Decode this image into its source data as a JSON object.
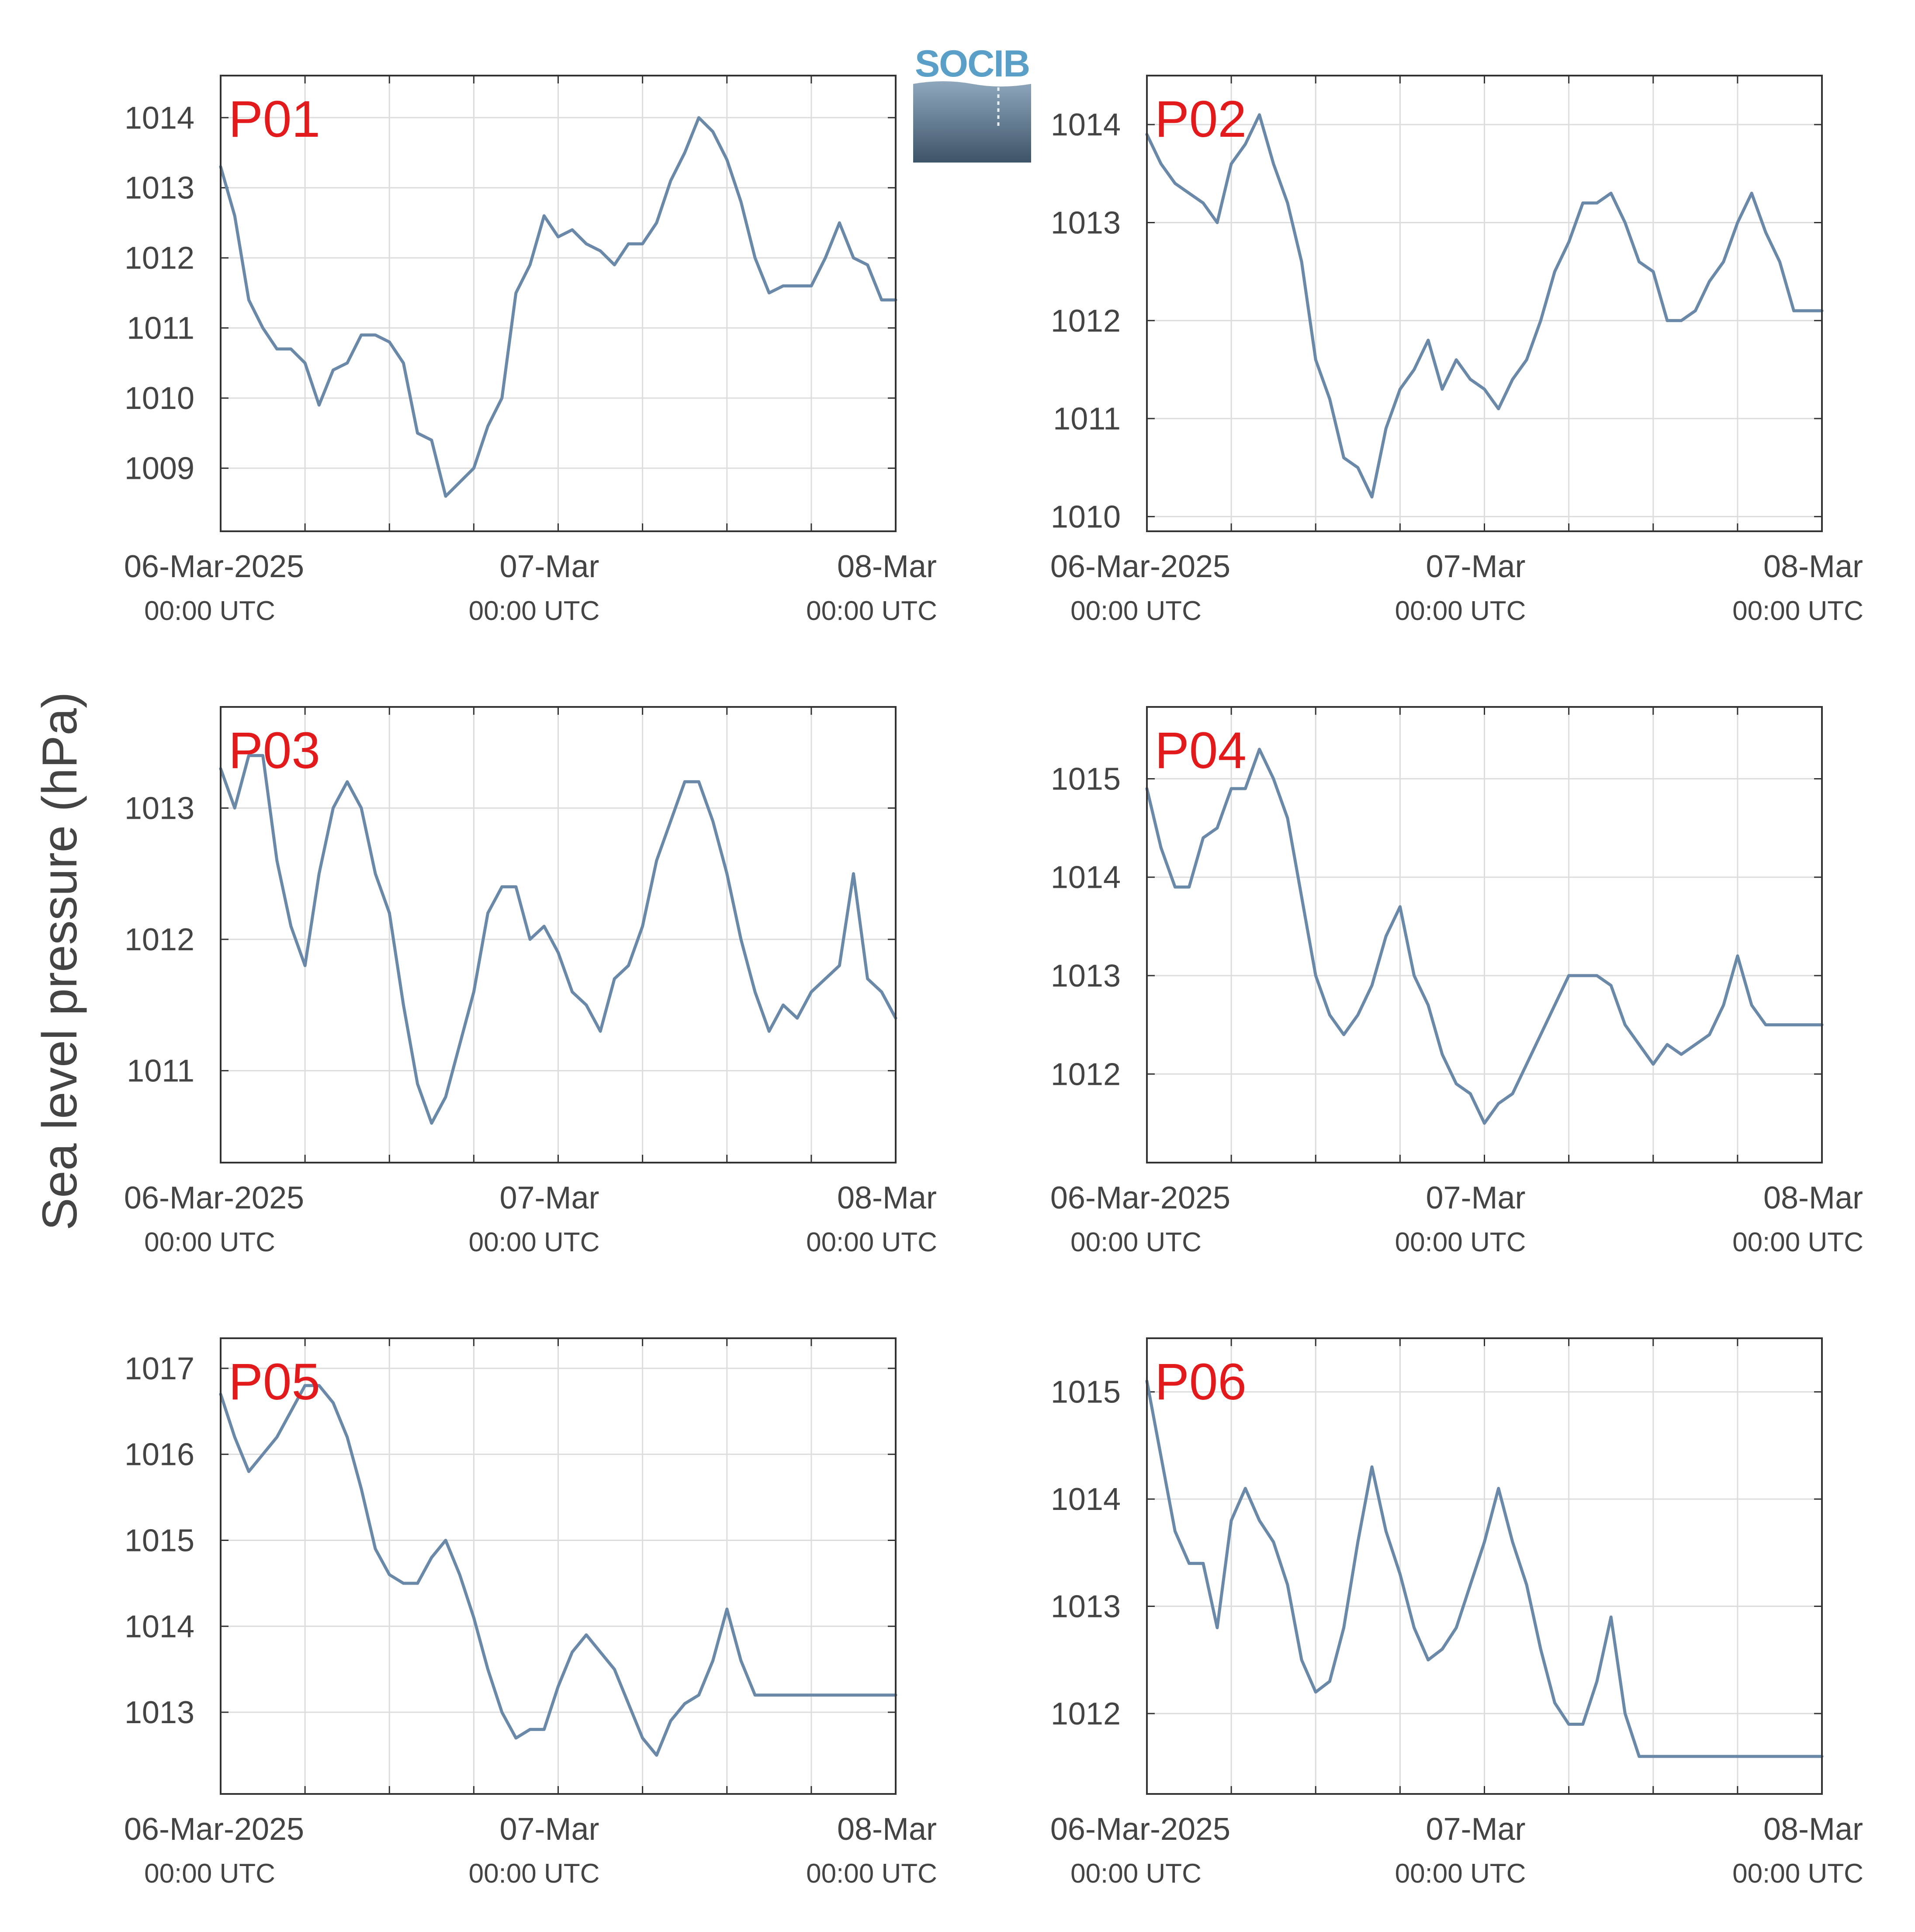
{
  "figure": {
    "ylabel": "Sea level pressure (hPa)",
    "logo_text": "SOCIB",
    "colors": {
      "line": "#6a89a9",
      "panel_label": "#e31a1c",
      "grid": "#dddddd",
      "axis": "#333333",
      "text": "#444444"
    }
  },
  "chart_data": [
    {
      "type": "line",
      "label": "P01",
      "xlim": [
        "2025-03-06 00:00",
        "2025-03-08 00:00"
      ],
      "ylim": [
        1008.1,
        1014.6
      ],
      "yticks": [
        1009,
        1010,
        1011,
        1012,
        1013,
        1014
      ],
      "xticklabels": [
        [
          "06-Mar-2025",
          "00:00 UTC"
        ],
        [
          "07-Mar",
          "00:00 UTC"
        ],
        [
          "08-Mar",
          "00:00 UTC"
        ]
      ],
      "series": [
        {
          "x_hours": [
            0,
            1,
            2,
            3,
            4,
            5,
            6,
            7,
            8,
            9,
            10,
            11,
            12,
            13,
            14,
            15,
            16,
            17,
            18,
            19,
            20,
            21,
            22,
            23,
            24,
            25,
            26,
            27,
            28,
            29,
            30,
            31,
            32,
            33,
            34,
            35,
            36,
            37,
            38,
            39,
            40,
            41,
            42,
            43,
            44,
            45,
            46,
            47,
            48
          ],
          "values": [
            1013.3,
            1012.6,
            1011.4,
            1011.0,
            1010.7,
            1010.7,
            1010.5,
            1009.9,
            1010.4,
            1010.5,
            1010.9,
            1010.9,
            1010.8,
            1010.5,
            1009.5,
            1009.4,
            1008.6,
            1008.8,
            1009.0,
            1009.6,
            1010.0,
            1011.5,
            1011.9,
            1012.6,
            1012.3,
            1012.4,
            1012.2,
            1012.1,
            1011.9,
            1012.2,
            1012.2,
            1012.5,
            1013.1,
            1013.5,
            1014.0,
            1013.8,
            1013.4,
            1012.8,
            1012.0,
            1011.5,
            1011.6,
            1011.6,
            1011.6,
            1012.0,
            1012.5,
            1012.0,
            1011.9,
            1011.4,
            1011.4
          ]
        }
      ]
    },
    {
      "type": "line",
      "label": "P02",
      "xlim": [
        "2025-03-06 00:00",
        "2025-03-08 00:00"
      ],
      "ylim": [
        983.0,
        1014.5
      ],
      "yticks": [
        1010,
        1011,
        1012,
        1013,
        1014
      ],
      "xticklabels": [
        [
          "06-Mar-2025",
          "00:00 UTC"
        ],
        [
          "07-Mar",
          "00:00 UTC"
        ],
        [
          "08-Mar",
          "00:00 UTC"
        ]
      ],
      "series": [
        {
          "x_hours": [
            0,
            1,
            2,
            3,
            4,
            5,
            6,
            7,
            8,
            9,
            10,
            11,
            12,
            13,
            14,
            15,
            16,
            17,
            18,
            19,
            20,
            21,
            22,
            23,
            24,
            25,
            26,
            27,
            28,
            29,
            30,
            31,
            32,
            33,
            34,
            35,
            36,
            37,
            38,
            39,
            40,
            41,
            42,
            43,
            44,
            45,
            46,
            47,
            48
          ],
          "values": [
            1013.9,
            1013.6,
            1013.4,
            1013.3,
            1013.2,
            1013.0,
            1013.6,
            1013.8,
            1014.1,
            1013.6,
            1013.2,
            1012.6,
            1011.6,
            1011.2,
            1010.6,
            1010.5,
            1010.2,
            1010.9,
            1011.3,
            1011.5,
            1011.8,
            1011.3,
            1011.6,
            1011.4,
            1011.3,
            1011.1,
            1011.4,
            1011.6,
            1012.0,
            1012.5,
            1012.8,
            1013.2,
            1013.2,
            1013.3,
            1013.0,
            1012.6,
            1012.5,
            1012.0,
            1012.0,
            1012.1,
            1012.4,
            1012.6,
            1013.0,
            1013.3,
            1012.9,
            1012.6,
            1012.1,
            1012.1,
            1012.1
          ]
        }
      ]
    },
    {
      "type": "line",
      "label": "P03",
      "xlim": [
        "2025-03-06 00:00",
        "2025-03-08 00:00"
      ],
      "ylim": [
        1010.3,
        1013.77
      ],
      "yticks": [
        1011,
        1012,
        1013
      ],
      "xticklabels": [
        [
          "06-Mar-2025",
          "00:00 UTC"
        ],
        [
          "07-Mar",
          "00:00 UTC"
        ],
        [
          "08-Mar",
          "00:00 UTC"
        ]
      ],
      "series": [
        {
          "x_hours": [
            0,
            1,
            2,
            3,
            4,
            5,
            6,
            7,
            8,
            9,
            10,
            11,
            12,
            13,
            14,
            15,
            16,
            17,
            18,
            19,
            20,
            21,
            22,
            23,
            24,
            25,
            26,
            27,
            28,
            29,
            30,
            31,
            32,
            33,
            34,
            35,
            36,
            37,
            38,
            39,
            40,
            41,
            42,
            43,
            44,
            45,
            46,
            47,
            48
          ],
          "values": [
            1013.3,
            1013.0,
            1013.4,
            1013.4,
            1012.6,
            1012.1,
            1011.8,
            1012.5,
            1013.0,
            1013.2,
            1013.0,
            1012.5,
            1012.2,
            1011.5,
            1010.9,
            1010.6,
            1010.8,
            1011.2,
            1011.6,
            1012.2,
            1012.4,
            1012.4,
            1012.0,
            1012.1,
            1011.9,
            1011.6,
            1011.5,
            1011.3,
            1011.7,
            1011.8,
            1012.1,
            1012.6,
            1012.9,
            1013.2,
            1013.2,
            1012.9,
            1012.5,
            1012.0,
            1011.6,
            1011.3,
            1011.5,
            1011.4,
            1011.6,
            1011.7,
            1011.8,
            1012.5,
            1011.7,
            1011.6,
            1011.4
          ]
        }
      ]
    },
    {
      "type": "line",
      "label": "P04",
      "xlim": [
        "2025-03-06 00:00",
        "2025-03-08 00:00"
      ],
      "ylim": [
        1011.1,
        1015.73
      ],
      "yticks": [
        1012,
        1013,
        1014,
        1015
      ],
      "xticklabels": [
        [
          "06-Mar-2025",
          "00:00 UTC"
        ],
        [
          "07-Mar",
          "00:00 UTC"
        ],
        [
          "08-Mar",
          "00:00 UTC"
        ]
      ],
      "series": [
        {
          "x_hours": [
            0,
            1,
            2,
            3,
            4,
            5,
            6,
            7,
            8,
            9,
            10,
            11,
            12,
            13,
            14,
            15,
            16,
            17,
            18,
            19,
            20,
            21,
            22,
            23,
            24,
            25,
            26,
            27,
            28,
            29,
            30,
            31,
            32,
            33,
            34,
            35,
            36,
            37,
            38,
            39,
            40,
            41,
            42,
            43,
            44,
            45,
            46,
            47,
            48
          ],
          "values": [
            1014.9,
            1014.3,
            1013.9,
            1013.9,
            1014.4,
            1014.5,
            1014.9,
            1014.9,
            1015.3,
            1015.0,
            1014.6,
            1013.8,
            1013.0,
            1012.6,
            1012.4,
            1012.6,
            1012.9,
            1013.4,
            1013.7,
            1013.0,
            1012.7,
            1012.2,
            1011.9,
            1011.8,
            1011.5,
            1011.7,
            1011.8,
            1012.1,
            1012.4,
            1012.7,
            1013.0,
            1013.0,
            1013.0,
            1012.9,
            1012.5,
            1012.3,
            1012.1,
            1012.3,
            1012.2,
            1012.3,
            1012.4,
            1012.7,
            1013.2,
            1012.7,
            1012.5,
            1012.5,
            1012.5,
            1012.5,
            1012.5
          ]
        }
      ]
    },
    {
      "type": "line",
      "label": "P05",
      "xlim": [
        "2025-03-06 00:00",
        "2025-03-08 00:00"
      ],
      "ylim": [
        1012.05,
        1017.35
      ],
      "yticks": [
        1013,
        1014,
        1015,
        1016,
        1017
      ],
      "xticklabels": [
        [
          "06-Mar-2025",
          "00:00 UTC"
        ],
        [
          "07-Mar",
          "00:00 UTC"
        ],
        [
          "08-Mar",
          "00:00 UTC"
        ]
      ],
      "series": [
        {
          "x_hours": [
            0,
            1,
            2,
            3,
            4,
            5,
            6,
            7,
            8,
            9,
            10,
            11,
            12,
            13,
            14,
            15,
            16,
            17,
            18,
            19,
            20,
            21,
            22,
            23,
            24,
            25,
            26,
            27,
            28,
            29,
            30,
            31,
            32,
            33,
            34,
            35,
            36,
            37,
            38,
            39,
            40,
            41,
            42,
            43,
            44,
            45,
            46,
            47,
            48
          ],
          "values": [
            1016.7,
            1016.2,
            1015.8,
            1016.0,
            1016.2,
            1016.5,
            1016.8,
            1016.8,
            1016.6,
            1016.2,
            1015.6,
            1014.9,
            1014.6,
            1014.5,
            1014.5,
            1014.8,
            1015.0,
            1014.6,
            1014.1,
            1013.5,
            1013.0,
            1012.7,
            1012.8,
            1012.8,
            1013.3,
            1013.7,
            1013.9,
            1013.7,
            1013.5,
            1013.1,
            1012.7,
            1012.5,
            1012.9,
            1013.1,
            1013.2,
            1013.6,
            1014.2,
            1013.6,
            1013.2,
            1013.2,
            1013.2,
            1013.2,
            1013.2,
            1013.2,
            1013.2,
            1013.2,
            1013.2,
            1013.2,
            1013.2
          ]
        }
      ]
    },
    {
      "type": "line",
      "label": "P06",
      "xlim": [
        "2025-03-06 00:00",
        "2025-03-08 00:00"
      ],
      "ylim": [
        1011.25,
        1015.5
      ],
      "yticks": [
        1012,
        1013,
        1014,
        1015
      ],
      "xticklabels": [
        [
          "06-Mar-2025",
          "00:00 UTC"
        ],
        [
          "07-Mar",
          "00:00 UTC"
        ],
        [
          "08-Mar",
          "00:00 UTC"
        ]
      ],
      "series": [
        {
          "x_hours": [
            0,
            1,
            2,
            3,
            4,
            5,
            6,
            7,
            8,
            9,
            10,
            11,
            12,
            13,
            14,
            15,
            16,
            17,
            18,
            19,
            20,
            21,
            22,
            23,
            24,
            25,
            26,
            27,
            28,
            29,
            30,
            31,
            32,
            33,
            34,
            35,
            36,
            37,
            38,
            39,
            40,
            41,
            42,
            43,
            44,
            45,
            46,
            47,
            48
          ],
          "values": [
            1015.1,
            1014.4,
            1013.7,
            1013.4,
            1013.4,
            1012.8,
            1013.8,
            1014.1,
            1013.8,
            1013.6,
            1013.2,
            1012.5,
            1012.2,
            1012.3,
            1012.8,
            1013.6,
            1014.3,
            1013.7,
            1013.3,
            1012.8,
            1012.5,
            1012.6,
            1012.8,
            1013.2,
            1013.6,
            1014.1,
            1013.6,
            1013.2,
            1012.6,
            1012.1,
            1011.9,
            1011.9,
            1012.3,
            1012.9,
            1012.0,
            1011.6,
            1011.6,
            1011.6,
            1011.6,
            1011.6,
            1011.6,
            1011.6,
            1011.6,
            1011.6,
            1011.6,
            1011.6,
            1011.6,
            1011.6,
            1011.6
          ]
        }
      ]
    }
  ]
}
